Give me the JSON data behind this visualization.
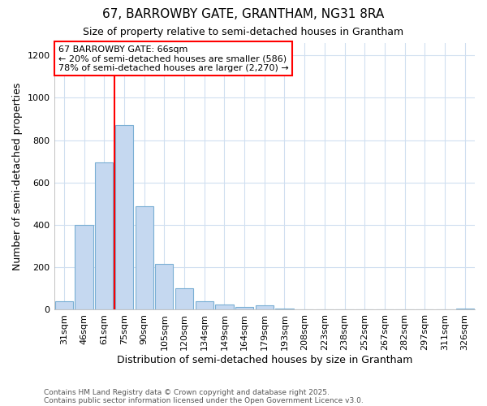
{
  "title1": "67, BARROWBY GATE, GRANTHAM, NG31 8RA",
  "title2": "Size of property relative to semi-detached houses in Grantham",
  "xlabel": "Distribution of semi-detached houses by size in Grantham",
  "ylabel": "Number of semi-detached properties",
  "categories": [
    "31sqm",
    "46sqm",
    "61sqm",
    "75sqm",
    "90sqm",
    "105sqm",
    "120sqm",
    "134sqm",
    "149sqm",
    "164sqm",
    "179sqm",
    "193sqm",
    "208sqm",
    "223sqm",
    "238sqm",
    "252sqm",
    "267sqm",
    "282sqm",
    "297sqm",
    "311sqm",
    "326sqm"
  ],
  "values": [
    40,
    400,
    695,
    870,
    490,
    215,
    100,
    40,
    25,
    15,
    20,
    5,
    0,
    0,
    0,
    0,
    0,
    0,
    0,
    0,
    5
  ],
  "bar_color": "#c5d8f0",
  "bar_edge_color": "#7aafd4",
  "red_line_x": 2.5,
  "annotation_box_text": "67 BARROWBY GATE: 66sqm\n← 20% of semi-detached houses are smaller (586)\n78% of semi-detached houses are larger (2,270) →",
  "ylim": [
    0,
    1260
  ],
  "yticks": [
    0,
    200,
    400,
    600,
    800,
    1000,
    1200
  ],
  "footer1": "Contains HM Land Registry data © Crown copyright and database right 2025.",
  "footer2": "Contains public sector information licensed under the Open Government Licence v3.0.",
  "background_color": "#ffffff",
  "grid_color": "#d0dff0",
  "title_fontsize": 11,
  "subtitle_fontsize": 9,
  "axis_label_fontsize": 9,
  "tick_fontsize": 8,
  "annotation_fontsize": 8
}
